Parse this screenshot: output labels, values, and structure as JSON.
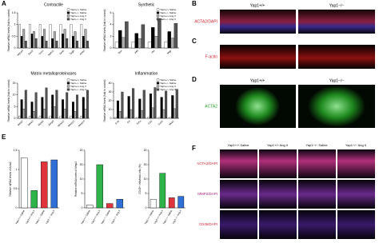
{
  "panel_labels": [
    "A",
    "B",
    "C",
    "D",
    "E",
    "F"
  ],
  "images": {
    "b_headers": [
      "Yap1+/+",
      "Yap1−/−"
    ],
    "b_stain": "ACTA2/DAPI",
    "c_stain": "F-actin",
    "d_headers": [
      "Yap1+/+",
      "Yap1−/−"
    ],
    "d_stain": "ACTA2",
    "f_headers": [
      "Yap1+/+ Saline",
      "Yap1+/+ Ang II",
      "Yap1−/− Saline",
      "Yap1−/− Ang II"
    ],
    "f_stains": [
      "ACTA2/DAPI",
      "MMP2/DAPI",
      "CD45/DAPI"
    ]
  },
  "chart_data": [
    {
      "type": "grouped",
      "title": "Contractile",
      "y_label": "Relative mRNA levels (fold to control)",
      "categories": [
        "Myocd",
        "Sm22",
        "Cnn1",
        "Myh11",
        "Smtn",
        "Tagln",
        "Acta2"
      ],
      "series": [
        {
          "name": "Yap1+/+ Saline",
          "color": "#ffffff",
          "values": [
            1,
            1,
            1,
            1,
            1,
            1,
            1
          ]
        },
        {
          "name": "Yap1−/− Saline",
          "color": "#000000",
          "values": [
            0.5,
            0.6,
            0.5,
            0.4,
            0.6,
            0.5,
            0.5
          ]
        },
        {
          "name": "Yap1+/+ Ang II",
          "color": "#aaaaaa",
          "values": [
            0.8,
            0.7,
            0.8,
            0.7,
            0.8,
            0.7,
            0.8
          ]
        },
        {
          "name": "Yap1−/− Ang II",
          "color": "#555555",
          "values": [
            0.3,
            0.4,
            0.3,
            0.3,
            0.4,
            0.3,
            0.3
          ]
        }
      ],
      "ylim": [
        0,
        1.5
      ],
      "yticks": [
        0,
        0.5,
        1,
        1.5
      ]
    },
    {
      "type": "grouped",
      "title": "Synthetic",
      "y_label": "Relative mRNA levels (fold to control)",
      "categories": [
        "Opn",
        "Klf4",
        "Vim",
        "Mgp"
      ],
      "series": [
        {
          "name": "Yap1+/+ Saline",
          "color": "#ffffff",
          "values": [
            1,
            1,
            1,
            1
          ]
        },
        {
          "name": "Yap1−/− Saline",
          "color": "#000000",
          "values": [
            3,
            2.5,
            3.5,
            2.8
          ]
        },
        {
          "name": "Yap1+/+ Ang II",
          "color": "#aaaaaa",
          "values": [
            1.8,
            1.6,
            2,
            1.7
          ]
        },
        {
          "name": "Yap1−/− Ang II",
          "color": "#555555",
          "values": [
            4.5,
            4,
            5,
            4.2
          ]
        }
      ],
      "ylim": [
        0,
        6
      ],
      "yticks": [
        0,
        2,
        4,
        6
      ]
    },
    {
      "type": "grouped",
      "title": "Matrix metalloproteinases",
      "y_label": "Relative mRNA levels (fold to control)",
      "categories": [
        "Mmp2",
        "Mmp3",
        "Mmp8",
        "Mmp9",
        "Mmp12",
        "Mmp13",
        "Mmp14"
      ],
      "series": [
        {
          "name": "Yap1+/+ Saline",
          "color": "#ffffff",
          "values": [
            1,
            1,
            1,
            1,
            1,
            1,
            1
          ]
        },
        {
          "name": "Yap1−/− Saline",
          "color": "#000000",
          "values": [
            8,
            7,
            9,
            10,
            8,
            7,
            9
          ]
        },
        {
          "name": "Yap1+/+ Ang II",
          "color": "#aaaaaa",
          "values": [
            4,
            3,
            4,
            5,
            4,
            3,
            4
          ]
        },
        {
          "name": "Yap1−/− Ang II",
          "color": "#555555",
          "values": [
            12,
            11,
            13,
            12,
            11,
            10,
            12
          ]
        }
      ],
      "ylim": [
        0,
        15
      ],
      "yticks": [
        0,
        5,
        10,
        15
      ]
    },
    {
      "type": "grouped",
      "title": "Inflammation",
      "y_label": "Relative mRNA levels (fold to control)",
      "categories": [
        "Il-1b",
        "Il-6",
        "Tnf-a",
        "Ccl2",
        "Cxcl1",
        "Mcp1"
      ],
      "series": [
        {
          "name": "Yap1+/+ Saline",
          "color": "#ffffff",
          "values": [
            1,
            1,
            1,
            1,
            1,
            1
          ]
        },
        {
          "name": "Yap1−/− Saline",
          "color": "#000000",
          "values": [
            20,
            25,
            22,
            28,
            24,
            26
          ]
        },
        {
          "name": "Yap1+/+ Ang II",
          "color": "#aaaaaa",
          "values": [
            8,
            10,
            9,
            12,
            10,
            11
          ]
        },
        {
          "name": "Yap1−/− Ang II",
          "color": "#555555",
          "values": [
            30,
            34,
            32,
            35,
            31,
            33
          ]
        }
      ],
      "ylim": [
        0,
        40
      ],
      "yticks": [
        0,
        10,
        20,
        30,
        40
      ]
    },
    {
      "type": "bar",
      "y_label": "Relative mRNA levels of Acta2",
      "categories": [
        "Yap1+/+ Saline",
        "Yap1+/+ Ang II",
        "Yap1−/− Saline",
        "Yap1−/− Ang II"
      ],
      "values": [
        1.3,
        0.45,
        1.2,
        1.25
      ],
      "colors": [
        "#ffffff",
        "#2db34a",
        "#e0333c",
        "#2f6fd6"
      ],
      "ylim": [
        0,
        1.5
      ],
      "yticks": [
        0,
        0.5,
        1,
        1.5
      ]
    },
    {
      "type": "bar",
      "y_label": "Relative mRNA levels of Mmp2",
      "categories": [
        "Yap1+/+ Saline",
        "Yap1+/+ Ang II",
        "Yap1−/− Saline",
        "Yap1−/− Ang II"
      ],
      "values": [
        1,
        15,
        1.5,
        3
      ],
      "colors": [
        "#ffffff",
        "#2db34a",
        "#e0333c",
        "#2f6fd6"
      ],
      "ylim": [
        0,
        20
      ],
      "yticks": [
        0,
        5,
        10,
        15,
        20
      ]
    },
    {
      "type": "bar",
      "y_label": "CD45+ cells/total cells (%)",
      "categories": [
        "Yap1+/+ Saline",
        "Yap1+/+ Ang II",
        "Yap1−/− Saline",
        "Yap1−/− Ang II"
      ],
      "values": [
        3,
        12,
        3.5,
        4
      ],
      "colors": [
        "#ffffff",
        "#2db34a",
        "#e0333c",
        "#2f6fd6"
      ],
      "ylim": [
        0,
        20
      ],
      "yticks": [
        0,
        5,
        10,
        15,
        20
      ]
    }
  ]
}
